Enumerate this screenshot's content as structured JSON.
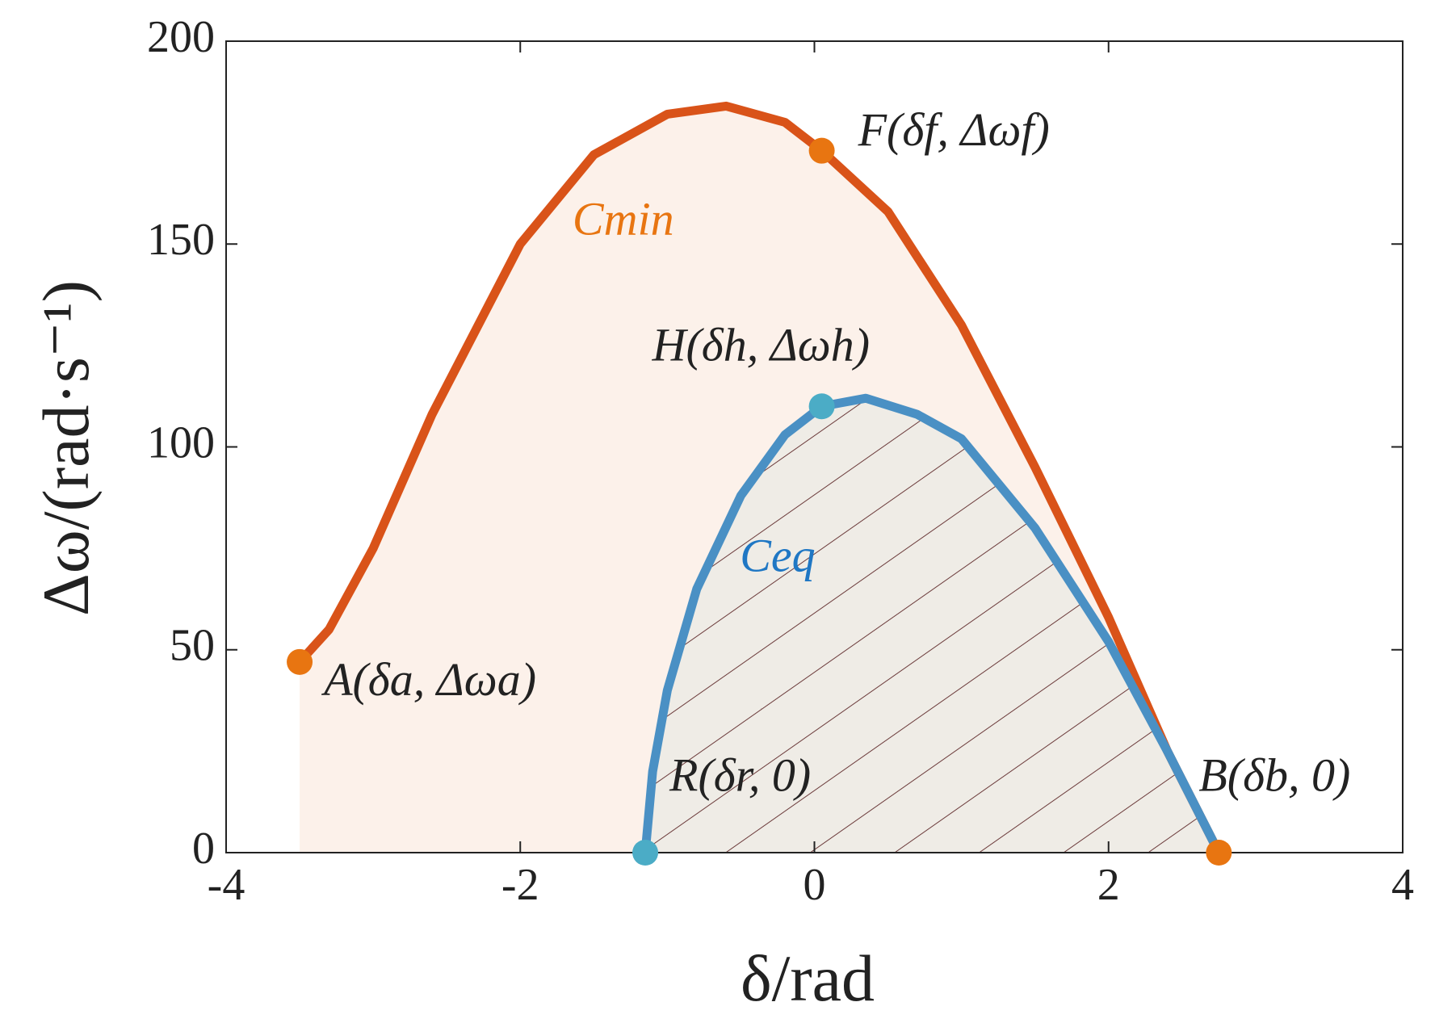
{
  "chart_data": {
    "type": "line",
    "x_label": "δ/rad",
    "y_label": "Δω/(rad·s⁻¹)",
    "xlim": [
      -4,
      4
    ],
    "ylim": [
      0,
      200
    ],
    "xticks": [
      -4,
      -2,
      0,
      2,
      4
    ],
    "yticks": [
      0,
      50,
      100,
      150,
      200
    ],
    "grid": false,
    "series": [
      {
        "name": "Cmin",
        "color": "#d95319",
        "x": [
          -3.5,
          -3.3,
          -3,
          -2.6,
          -2,
          -1.5,
          -1,
          -0.6,
          -0.2,
          0.05,
          0.5,
          1,
          1.5,
          2,
          2.4,
          2.75
        ],
        "values": [
          47,
          55,
          75,
          108,
          150,
          172,
          182,
          184,
          180,
          173,
          158,
          130,
          95,
          58,
          25,
          0
        ]
      },
      {
        "name": "Ceq",
        "color": "#4a90c4",
        "x": [
          -1.15,
          -1.1,
          -1,
          -0.8,
          -0.5,
          -0.2,
          0.05,
          0.35,
          0.7,
          1,
          1.5,
          2,
          2.4,
          2.75
        ],
        "values": [
          0,
          20,
          40,
          65,
          88,
          103,
          110,
          112,
          108,
          102,
          80,
          52,
          25,
          0
        ]
      }
    ],
    "points": [
      {
        "label": "A(δa, Δωa)",
        "x": -3.5,
        "y": 47,
        "color": "#e87511"
      },
      {
        "label": "F(δf, Δωf)",
        "x": 0.05,
        "y": 173,
        "color": "#e87511"
      },
      {
        "label": "H(δh, Δωh)",
        "x": 0.05,
        "y": 110,
        "color": "#4bacc6"
      },
      {
        "label": "R(δr, 0)",
        "x": -1.15,
        "y": 0,
        "color": "#4bacc6"
      },
      {
        "label": "B(δb, 0)",
        "x": 2.75,
        "y": 0,
        "color": "#e87511"
      }
    ]
  }
}
